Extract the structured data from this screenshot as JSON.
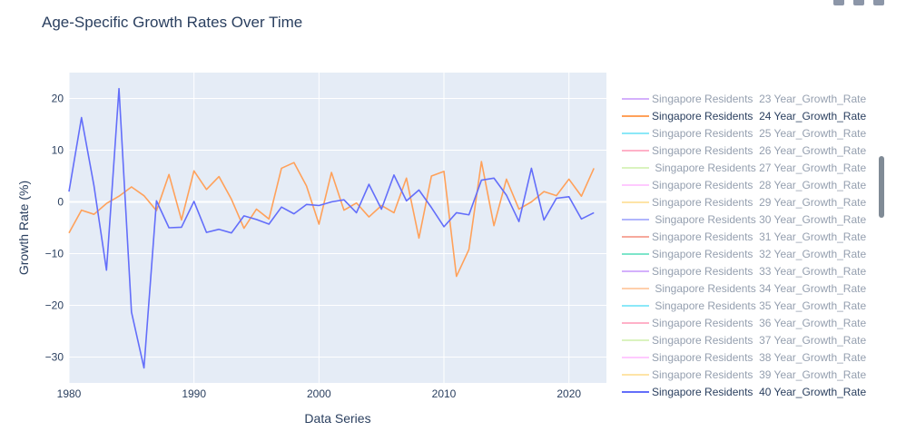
{
  "chart_data": {
    "type": "line",
    "title": "Age-Specific Growth Rates Over Time",
    "xlabel": "Data Series",
    "ylabel": "Growth Rate (%)",
    "xlim": [
      1980,
      2023
    ],
    "ylim": [
      -35,
      25
    ],
    "x_ticks": [
      1980,
      1990,
      2000,
      2010,
      2020
    ],
    "y_ticks": [
      20,
      10,
      0,
      -10,
      -20,
      -30
    ],
    "x_tick_labels": [
      "1980",
      "1990",
      "2000",
      "2010",
      "2020"
    ],
    "y_tick_labels": [
      "20",
      "10",
      "0",
      "−10",
      "−20",
      "−30"
    ],
    "grid": true,
    "legend_position": "right",
    "legend": [
      {
        "name": "Singapore Residents  23 Year_Growth_Rate",
        "color": "#ab63fa",
        "visible": false
      },
      {
        "name": "Singapore Residents  24 Year_Growth_Rate",
        "color": "#ffa15a",
        "visible": true
      },
      {
        "name": "Singapore Residents  25 Year_Growth_Rate",
        "color": "#19d3f3",
        "visible": false
      },
      {
        "name": "Singapore Residents  26 Year_Growth_Rate",
        "color": "#ff6692",
        "visible": false
      },
      {
        "name": " Singapore Residents 27 Year_Growth_Rate",
        "color": "#b6e880",
        "visible": false
      },
      {
        "name": "Singapore Residents  28 Year_Growth_Rate",
        "color": "#ff97ff",
        "visible": false
      },
      {
        "name": "Singapore Residents  29 Year_Growth_Rate",
        "color": "#fecb52",
        "visible": false
      },
      {
        "name": " Singapore Residents 30 Year_Growth_Rate",
        "color": "#636efa",
        "visible": false
      },
      {
        "name": "Singapore Residents  31 Year_Growth_Rate",
        "color": "#ef553b",
        "visible": false
      },
      {
        "name": "Singapore Residents  32 Year_Growth_Rate",
        "color": "#00cc96",
        "visible": false
      },
      {
        "name": "Singapore Residents  33 Year_Growth_Rate",
        "color": "#ab63fa",
        "visible": false
      },
      {
        "name": " Singapore Residents 34 Year_Growth_Rate",
        "color": "#ffa15a",
        "visible": false
      },
      {
        "name": " Singapore Residents 35 Year_Growth_Rate",
        "color": "#19d3f3",
        "visible": false
      },
      {
        "name": "Singapore Residents  36 Year_Growth_Rate",
        "color": "#ff6692",
        "visible": false
      },
      {
        "name": "Singapore Residents  37 Year_Growth_Rate",
        "color": "#b6e880",
        "visible": false
      },
      {
        "name": "Singapore Residents  38 Year_Growth_Rate",
        "color": "#ff97ff",
        "visible": false
      },
      {
        "name": "Singapore Residents  39 Year_Growth_Rate",
        "color": "#fecb52",
        "visible": false
      },
      {
        "name": "Singapore Residents  40 Year_Growth_Rate",
        "color": "#636efa",
        "visible": true
      }
    ],
    "x": [
      1980,
      1981,
      1982,
      1983,
      1984,
      1985,
      1986,
      1987,
      1988,
      1989,
      1990,
      1991,
      1992,
      1993,
      1994,
      1995,
      1996,
      1997,
      1998,
      1999,
      2000,
      2001,
      2002,
      2003,
      2004,
      2005,
      2006,
      2007,
      2008,
      2009,
      2010,
      2011,
      2012,
      2013,
      2014,
      2015,
      2016,
      2017,
      2018,
      2019,
      2020,
      2021,
      2022
    ],
    "series": [
      {
        "name": "Singapore Residents  24 Year_Growth_Rate",
        "color": "#ffa15a",
        "values": [
          -6.0,
          -1.6,
          -2.4,
          -0.3,
          1.1,
          2.9,
          1.2,
          -1.7,
          5.3,
          -3.5,
          6.0,
          2.4,
          4.9,
          0.5,
          -5.1,
          -1.4,
          -3.3,
          6.5,
          7.6,
          3.1,
          -4.3,
          5.7,
          -1.6,
          -0.2,
          -2.9,
          -0.7,
          -2.1,
          4.6,
          -7.0,
          5.0,
          5.9,
          -14.4,
          -9.2,
          7.8,
          -4.6,
          4.4,
          -1.4,
          0.0,
          2.0,
          1.2,
          4.4,
          1.1,
          6.5
        ]
      },
      {
        "name": "Singapore Residents  40 Year_Growth_Rate",
        "color": "#636efa",
        "values": [
          2.0,
          16.3,
          3.1,
          -13.2,
          21.9,
          -21.3,
          -32.1,
          0.2,
          -5.0,
          -4.9,
          0.1,
          -5.9,
          -5.3,
          -6.0,
          -2.7,
          -3.4,
          -4.3,
          -1.0,
          -2.3,
          -0.5,
          -0.7,
          0.0,
          0.4,
          -2.1,
          3.4,
          -1.4,
          5.2,
          0.2,
          2.3,
          -1.1,
          -4.8,
          -2.1,
          -2.5,
          4.2,
          4.6,
          1.3,
          -3.8,
          6.5,
          -3.5,
          0.7,
          1.0,
          -3.3,
          -2.1
        ]
      }
    ]
  }
}
